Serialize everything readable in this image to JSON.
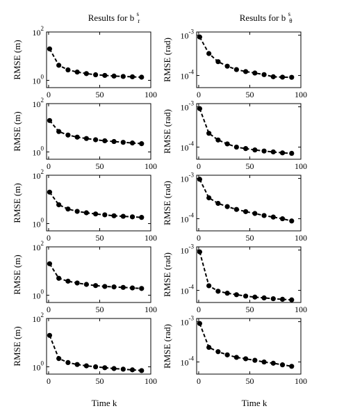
{
  "figure": {
    "left_title": "Results for b",
    "left_title_sup": "s",
    "left_title_sub": "r",
    "right_title": "Results for b",
    "right_title_sup": "s",
    "right_title_sub": "θ",
    "xlabel": "Time k"
  },
  "chart_data": [
    {
      "type": "line",
      "column": "left",
      "row": 1,
      "ylabel": "RMSE (m)",
      "yscale": "log",
      "ylim": [
        0.5,
        100
      ],
      "yticks": [
        {
          "base": "10",
          "exp": "2",
          "value": 100
        },
        {
          "base": "10",
          "exp": "0",
          "value": 1
        }
      ],
      "xlim": [
        -2,
        100
      ],
      "xticks": [
        "0",
        "50",
        "100"
      ],
      "line_style": "dashed",
      "marker": "filled-circle",
      "series": [
        {
          "x": [
            1,
            10,
            19,
            28,
            37,
            46,
            55,
            64,
            73,
            82,
            91
          ],
          "y": [
            20,
            4.2,
            2.7,
            2.2,
            1.9,
            1.7,
            1.6,
            1.5,
            1.45,
            1.4,
            1.35
          ]
        }
      ]
    },
    {
      "type": "line",
      "column": "right",
      "row": 1,
      "ylabel": "RMSE (rad)",
      "yscale": "log",
      "ylim": [
        5e-05,
        0.0012
      ],
      "yticks": [
        {
          "base": "10",
          "exp": "-3",
          "value": 0.001
        },
        {
          "base": "10",
          "exp": "-4",
          "value": 0.0001
        }
      ],
      "xlim": [
        -2,
        100
      ],
      "xticks": [
        "0",
        "50",
        "100"
      ],
      "line_style": "dashed",
      "marker": "filled-circle",
      "series": [
        {
          "x": [
            1,
            10,
            19,
            28,
            37,
            46,
            55,
            64,
            73,
            82,
            91
          ],
          "y": [
            0.0009,
            0.00035,
            0.00022,
            0.00017,
            0.00014,
            0.000125,
            0.000115,
            0.000105,
            9.3e-05,
            9.1e-05,
            9e-05
          ]
        }
      ]
    },
    {
      "type": "line",
      "column": "left",
      "row": 2,
      "ylabel": "RMSE (m)",
      "yscale": "log",
      "ylim": [
        0.5,
        100
      ],
      "yticks": [
        {
          "base": "10",
          "exp": "2",
          "value": 100
        },
        {
          "base": "10",
          "exp": "0",
          "value": 1
        }
      ],
      "xlim": [
        -2,
        100
      ],
      "xticks": [
        "0",
        "50",
        "100"
      ],
      "line_style": "dashed",
      "marker": "filled-circle",
      "series": [
        {
          "x": [
            1,
            10,
            19,
            28,
            37,
            46,
            55,
            64,
            73,
            82,
            91
          ],
          "y": [
            20,
            7,
            5,
            4.1,
            3.6,
            3.2,
            2.9,
            2.7,
            2.5,
            2.35,
            2.2
          ]
        }
      ]
    },
    {
      "type": "line",
      "column": "right",
      "row": 2,
      "ylabel": "RMSE (rad)",
      "yscale": "log",
      "ylim": [
        5e-05,
        0.0012
      ],
      "yticks": [
        {
          "base": "10",
          "exp": "-3",
          "value": 0.001
        },
        {
          "base": "10",
          "exp": "-4",
          "value": 0.0001
        }
      ],
      "xlim": [
        -2,
        100
      ],
      "xticks": [
        "0",
        "50",
        "100"
      ],
      "line_style": "dashed",
      "marker": "filled-circle",
      "series": [
        {
          "x": [
            1,
            10,
            19,
            28,
            37,
            46,
            55,
            64,
            73,
            82,
            91
          ],
          "y": [
            0.0009,
            0.00022,
            0.00015,
            0.00012,
            0.0001,
            9.2e-05,
            8.5e-05,
            8e-05,
            7.6e-05,
            7.2e-05,
            7e-05
          ]
        }
      ]
    },
    {
      "type": "line",
      "column": "left",
      "row": 3,
      "ylabel": "RMSE (m)",
      "yscale": "log",
      "ylim": [
        0.5,
        100
      ],
      "yticks": [
        {
          "base": "10",
          "exp": "2",
          "value": 100
        },
        {
          "base": "10",
          "exp": "0",
          "value": 1
        }
      ],
      "xlim": [
        -2,
        100
      ],
      "xticks": [
        "0",
        "50",
        "100"
      ],
      "line_style": "dashed",
      "marker": "filled-circle",
      "series": [
        {
          "x": [
            1,
            10,
            19,
            28,
            37,
            46,
            55,
            64,
            73,
            82,
            91
          ],
          "y": [
            20,
            6,
            4,
            3.2,
            2.8,
            2.5,
            2.3,
            2.1,
            2,
            1.9,
            1.8
          ]
        }
      ]
    },
    {
      "type": "line",
      "column": "right",
      "row": 3,
      "ylabel": "RMSE (rad)",
      "yscale": "log",
      "ylim": [
        5e-05,
        0.0012
      ],
      "yticks": [
        {
          "base": "10",
          "exp": "-3",
          "value": 0.001
        },
        {
          "base": "10",
          "exp": "-4",
          "value": 0.0001
        }
      ],
      "xlim": [
        -2,
        100
      ],
      "xticks": [
        "0",
        "50",
        "100"
      ],
      "line_style": "dashed",
      "marker": "filled-circle",
      "series": [
        {
          "x": [
            1,
            10,
            19,
            28,
            37,
            46,
            55,
            64,
            73,
            82,
            91
          ],
          "y": [
            0.00095,
            0.00033,
            0.00024,
            0.0002,
            0.00017,
            0.00015,
            0.000135,
            0.00012,
            0.00011,
            0.0001,
            8.8e-05
          ]
        }
      ]
    },
    {
      "type": "line",
      "column": "left",
      "row": 4,
      "ylabel": "RMSE (m)",
      "yscale": "log",
      "ylim": [
        0.5,
        100
      ],
      "yticks": [
        {
          "base": "10",
          "exp": "2",
          "value": 100
        },
        {
          "base": "10",
          "exp": "0",
          "value": 1
        }
      ],
      "xlim": [
        -2,
        100
      ],
      "xticks": [
        "0",
        "50",
        "100"
      ],
      "line_style": "dashed",
      "marker": "filled-circle",
      "series": [
        {
          "x": [
            1,
            10,
            19,
            28,
            37,
            46,
            55,
            64,
            73,
            82,
            91
          ],
          "y": [
            20,
            5,
            3.8,
            3.2,
            2.8,
            2.5,
            2.3,
            2.2,
            2.1,
            2,
            1.9
          ]
        }
      ]
    },
    {
      "type": "line",
      "column": "right",
      "row": 4,
      "ylabel": "RMSE (rad)",
      "yscale": "log",
      "ylim": [
        5e-05,
        0.0012
      ],
      "yticks": [
        {
          "base": "10",
          "exp": "-3",
          "value": 0.001
        },
        {
          "base": "10",
          "exp": "-4",
          "value": 0.0001
        }
      ],
      "xlim": [
        -2,
        100
      ],
      "xticks": [
        "0",
        "50",
        "100"
      ],
      "line_style": "dashed",
      "marker": "filled-circle",
      "series": [
        {
          "x": [
            1,
            10,
            19,
            28,
            37,
            46,
            55,
            64,
            73,
            82,
            91
          ],
          "y": [
            0.0009,
            0.00013,
            9.5e-05,
            8.5e-05,
            7.8e-05,
            7.2e-05,
            6.8e-05,
            6.5e-05,
            6.2e-05,
            6e-05,
            5.8e-05
          ]
        }
      ]
    },
    {
      "type": "line",
      "column": "left",
      "row": 5,
      "ylabel": "RMSE (m)",
      "yscale": "log",
      "ylim": [
        0.5,
        100
      ],
      "yticks": [
        {
          "base": "10",
          "exp": "2",
          "value": 100
        },
        {
          "base": "10",
          "exp": "0",
          "value": 1
        }
      ],
      "xlim": [
        -2,
        100
      ],
      "xticks": [
        "0",
        "50",
        "100"
      ],
      "line_style": "dashed",
      "marker": "filled-circle",
      "series": [
        {
          "x": [
            1,
            10,
            19,
            28,
            37,
            46,
            55,
            64,
            73,
            82,
            91
          ],
          "y": [
            20,
            2.2,
            1.5,
            1.25,
            1.1,
            1,
            0.92,
            0.85,
            0.8,
            0.75,
            0.7
          ]
        }
      ]
    },
    {
      "type": "line",
      "column": "right",
      "row": 5,
      "ylabel": "RMSE (rad)",
      "yscale": "log",
      "ylim": [
        5e-05,
        0.0012
      ],
      "yticks": [
        {
          "base": "10",
          "exp": "-3",
          "value": 0.001
        },
        {
          "base": "10",
          "exp": "-4",
          "value": 0.0001
        }
      ],
      "xlim": [
        -2,
        100
      ],
      "xticks": [
        "0",
        "50",
        "100"
      ],
      "line_style": "dashed",
      "marker": "filled-circle",
      "series": [
        {
          "x": [
            1,
            10,
            19,
            28,
            37,
            46,
            55,
            64,
            73,
            82,
            91
          ],
          "y": [
            0.0009,
            0.00023,
            0.00018,
            0.00015,
            0.00013,
            0.00012,
            0.00011,
            0.0001,
            9.3e-05,
            8.5e-05,
            7.8e-05
          ]
        }
      ]
    }
  ]
}
